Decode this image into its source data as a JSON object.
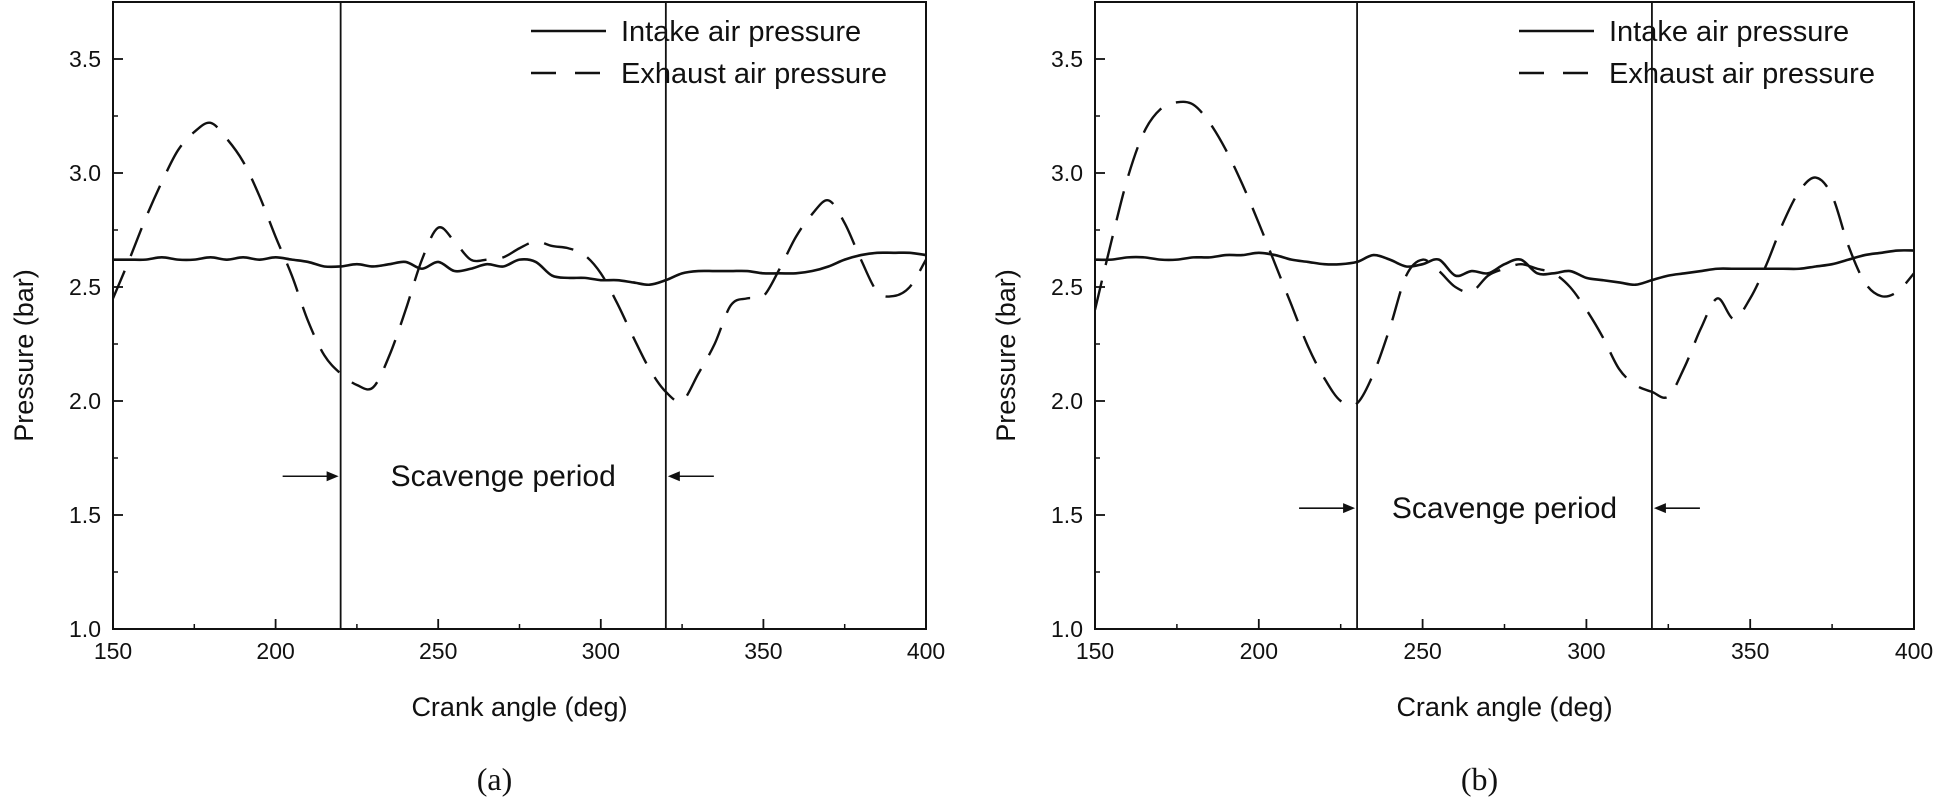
{
  "chart_data": [
    {
      "type": "line",
      "panel_label": "(a)",
      "xlabel": "Crank angle (deg)",
      "ylabel": "Pressure (bar)",
      "xlim": [
        150,
        400
      ],
      "ylim": [
        1.0,
        3.75
      ],
      "xticks": [
        150,
        200,
        250,
        300,
        350,
        400
      ],
      "xtick_labels": [
        "150",
        "200",
        "250",
        "300",
        "350",
        "400"
      ],
      "yticks": [
        1.0,
        1.5,
        2.0,
        2.5,
        3.0,
        3.5
      ],
      "ytick_labels": [
        "1.0",
        "1.5",
        "2.0",
        "2.5",
        "3.0",
        "3.5"
      ],
      "grid": false,
      "legend_position": "top-right",
      "annotation": {
        "text": "Scavenge period",
        "y": 1.67,
        "start": 220,
        "end": 320
      },
      "series": [
        {
          "name": "Intake air pressure",
          "style": "solid",
          "x": [
            150,
            155,
            160,
            165,
            170,
            175,
            180,
            185,
            190,
            195,
            200,
            205,
            210,
            215,
            220,
            225,
            230,
            235,
            240,
            245,
            250,
            255,
            260,
            265,
            270,
            275,
            280,
            285,
            290,
            295,
            300,
            305,
            310,
            315,
            320,
            325,
            330,
            335,
            340,
            345,
            350,
            355,
            360,
            365,
            370,
            375,
            380,
            385,
            390,
            395,
            400
          ],
          "y": [
            2.62,
            2.62,
            2.62,
            2.63,
            2.62,
            2.62,
            2.63,
            2.62,
            2.63,
            2.62,
            2.63,
            2.62,
            2.61,
            2.59,
            2.59,
            2.6,
            2.59,
            2.6,
            2.61,
            2.58,
            2.61,
            2.57,
            2.58,
            2.6,
            2.59,
            2.62,
            2.61,
            2.55,
            2.54,
            2.54,
            2.53,
            2.53,
            2.52,
            2.51,
            2.53,
            2.56,
            2.57,
            2.57,
            2.57,
            2.57,
            2.56,
            2.56,
            2.56,
            2.57,
            2.59,
            2.62,
            2.64,
            2.65,
            2.65,
            2.65,
            2.64
          ]
        },
        {
          "name": "Exhaust air pressure",
          "style": "dashed",
          "x": [
            150,
            155,
            160,
            165,
            170,
            175,
            180,
            185,
            190,
            195,
            200,
            205,
            210,
            215,
            220,
            225,
            230,
            235,
            240,
            245,
            250,
            255,
            260,
            265,
            270,
            275,
            280,
            285,
            290,
            295,
            300,
            305,
            310,
            315,
            320,
            325,
            330,
            335,
            340,
            345,
            350,
            355,
            360,
            365,
            370,
            375,
            380,
            385,
            390,
            395,
            400
          ],
          "y": [
            2.45,
            2.62,
            2.8,
            2.96,
            3.1,
            3.18,
            3.22,
            3.15,
            3.05,
            2.9,
            2.72,
            2.55,
            2.35,
            2.2,
            2.12,
            2.07,
            2.06,
            2.2,
            2.4,
            2.62,
            2.76,
            2.7,
            2.62,
            2.62,
            2.63,
            2.67,
            2.7,
            2.68,
            2.67,
            2.64,
            2.56,
            2.43,
            2.28,
            2.14,
            2.04,
            2.0,
            2.12,
            2.25,
            2.42,
            2.45,
            2.46,
            2.58,
            2.72,
            2.82,
            2.88,
            2.78,
            2.62,
            2.48,
            2.46,
            2.5,
            2.62
          ]
        }
      ]
    },
    {
      "type": "line",
      "panel_label": "(b)",
      "xlabel": "Crank angle (deg)",
      "ylabel": "Pressure (bar)",
      "xlim": [
        150,
        400
      ],
      "ylim": [
        1.0,
        3.75
      ],
      "xticks": [
        150,
        200,
        250,
        300,
        350,
        400
      ],
      "xtick_labels": [
        "150",
        "200",
        "250",
        "300",
        "350",
        "400"
      ],
      "yticks": [
        1.0,
        1.5,
        2.0,
        2.5,
        3.0,
        3.5
      ],
      "ytick_labels": [
        "1.0",
        "1.5",
        "2.0",
        "2.5",
        "3.0",
        "3.5"
      ],
      "grid": false,
      "legend_position": "top-right",
      "annotation": {
        "text": "Scavenge period",
        "y": 1.53,
        "start": 230,
        "end": 320
      },
      "series": [
        {
          "name": "Intake air pressure",
          "style": "solid",
          "x": [
            150,
            155,
            160,
            165,
            170,
            175,
            180,
            185,
            190,
            195,
            200,
            205,
            210,
            215,
            220,
            225,
            230,
            235,
            240,
            245,
            250,
            255,
            260,
            265,
            270,
            275,
            280,
            285,
            290,
            295,
            300,
            305,
            310,
            315,
            320,
            325,
            330,
            335,
            340,
            345,
            350,
            355,
            360,
            365,
            370,
            375,
            380,
            385,
            390,
            395,
            400
          ],
          "y": [
            2.62,
            2.62,
            2.63,
            2.63,
            2.62,
            2.62,
            2.63,
            2.63,
            2.64,
            2.64,
            2.65,
            2.64,
            2.62,
            2.61,
            2.6,
            2.6,
            2.61,
            2.64,
            2.62,
            2.59,
            2.6,
            2.62,
            2.55,
            2.57,
            2.56,
            2.6,
            2.62,
            2.56,
            2.56,
            2.57,
            2.54,
            2.53,
            2.52,
            2.51,
            2.53,
            2.55,
            2.56,
            2.57,
            2.58,
            2.58,
            2.58,
            2.58,
            2.58,
            2.58,
            2.59,
            2.6,
            2.62,
            2.64,
            2.65,
            2.66,
            2.66
          ]
        },
        {
          "name": "Exhaust air pressure",
          "style": "dashed",
          "x": [
            150,
            155,
            160,
            165,
            170,
            175,
            180,
            185,
            190,
            195,
            200,
            205,
            210,
            215,
            220,
            225,
            230,
            235,
            240,
            245,
            250,
            255,
            260,
            265,
            270,
            275,
            280,
            285,
            290,
            295,
            300,
            305,
            310,
            315,
            320,
            325,
            330,
            335,
            340,
            345,
            350,
            355,
            360,
            365,
            370,
            375,
            380,
            385,
            390,
            395,
            400
          ],
          "y": [
            2.4,
            2.7,
            2.98,
            3.18,
            3.28,
            3.31,
            3.3,
            3.22,
            3.1,
            2.95,
            2.78,
            2.6,
            2.42,
            2.24,
            2.1,
            2.0,
            1.99,
            2.12,
            2.32,
            2.55,
            2.62,
            2.57,
            2.5,
            2.48,
            2.55,
            2.58,
            2.6,
            2.58,
            2.56,
            2.5,
            2.4,
            2.28,
            2.14,
            2.07,
            2.04,
            2.02,
            2.15,
            2.32,
            2.45,
            2.36,
            2.45,
            2.6,
            2.78,
            2.92,
            2.98,
            2.9,
            2.68,
            2.52,
            2.46,
            2.48,
            2.56
          ]
        }
      ]
    }
  ]
}
